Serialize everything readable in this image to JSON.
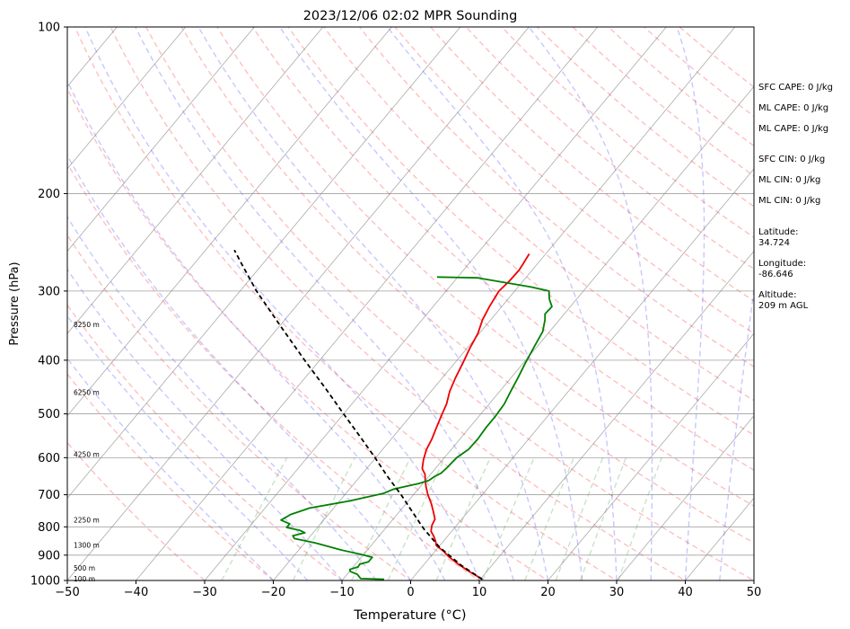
{
  "chart_data": {
    "type": "line",
    "title": "2023/12/06 02:02 MPR Sounding",
    "xlabel": "Temperature (°C)",
    "ylabel": "Pressure (hPa)",
    "xlim": [
      -50,
      50
    ],
    "ylim": [
      1000,
      100
    ],
    "y_scale": "log",
    "skew": "skew-T",
    "x_ticks": [
      "−50",
      "−40",
      "−30",
      "−20",
      "−10",
      "0",
      "10",
      "20",
      "30",
      "40",
      "50"
    ],
    "x_tick_values": [
      -50,
      -40,
      -30,
      -20,
      -10,
      0,
      10,
      20,
      30,
      40,
      50
    ],
    "y_ticks": [
      "100",
      "200",
      "300",
      "400",
      "500",
      "600",
      "700",
      "800",
      "900",
      "1000"
    ],
    "y_tick_values": [
      100,
      200,
      300,
      400,
      500,
      600,
      700,
      800,
      900,
      1000
    ],
    "grid": true,
    "height_labels": [
      {
        "text": "8250 m",
        "p": 345
      },
      {
        "text": "6250 m",
        "p": 458
      },
      {
        "text": "4250 m",
        "p": 593
      },
      {
        "text": "2250 m",
        "p": 778
      },
      {
        "text": "1300 m",
        "p": 865
      },
      {
        "text": "500 m",
        "p": 951
      },
      {
        "text": "100 m",
        "p": 994
      }
    ],
    "series": [
      {
        "color": "#ee0000",
        "style": "solid",
        "points": [
          {
            "p": 995,
            "t": 10.3
          },
          {
            "p": 965,
            "t": 7.6
          },
          {
            "p": 935,
            "t": 5.0
          },
          {
            "p": 905,
            "t": 2.6
          },
          {
            "p": 885,
            "t": 1.2
          },
          {
            "p": 865,
            "t": -0.5
          },
          {
            "p": 850,
            "t": -1.1
          },
          {
            "p": 832,
            "t": -2.0
          },
          {
            "p": 815,
            "t": -3.0
          },
          {
            "p": 795,
            "t": -3.6
          },
          {
            "p": 775,
            "t": -3.9
          },
          {
            "p": 752,
            "t": -5.0
          },
          {
            "p": 725,
            "t": -6.4
          },
          {
            "p": 700,
            "t": -7.9
          },
          {
            "p": 678,
            "t": -9.1
          },
          {
            "p": 660,
            "t": -10.0
          },
          {
            "p": 643,
            "t": -10.8
          },
          {
            "p": 628,
            "t": -11.9
          },
          {
            "p": 605,
            "t": -12.8
          },
          {
            "p": 580,
            "t": -13.6
          },
          {
            "p": 555,
            "t": -14.1
          },
          {
            "p": 530,
            "t": -14.8
          },
          {
            "p": 505,
            "t": -15.5
          },
          {
            "p": 480,
            "t": -16.2
          },
          {
            "p": 455,
            "t": -17.3
          },
          {
            "p": 430,
            "t": -18.1
          },
          {
            "p": 405,
            "t": -18.8
          },
          {
            "p": 380,
            "t": -19.6
          },
          {
            "p": 358,
            "t": -20.2
          },
          {
            "p": 338,
            "t": -21.2
          },
          {
            "p": 320,
            "t": -21.8
          },
          {
            "p": 300,
            "t": -22.3
          },
          {
            "p": 288,
            "t": -22.0
          },
          {
            "p": 275,
            "t": -21.9
          },
          {
            "p": 267,
            "t": -22.1
          },
          {
            "p": 257,
            "t": -22.4
          }
        ]
      },
      {
        "color": "#008000",
        "style": "solid",
        "points": [
          {
            "p": 995,
            "t": -4.0
          },
          {
            "p": 992,
            "t": -7.5
          },
          {
            "p": 975,
            "t": -8.5
          },
          {
            "p": 963,
            "t": -9.9
          },
          {
            "p": 955,
            "t": -10.2
          },
          {
            "p": 945,
            "t": -9.3
          },
          {
            "p": 935,
            "t": -9.4
          },
          {
            "p": 925,
            "t": -8.4
          },
          {
            "p": 908,
            "t": -8.4
          },
          {
            "p": 898,
            "t": -10.2
          },
          {
            "p": 880,
            "t": -14.0
          },
          {
            "p": 855,
            "t": -18.5
          },
          {
            "p": 840,
            "t": -22.0
          },
          {
            "p": 830,
            "t": -22.6
          },
          {
            "p": 820,
            "t": -21.2
          },
          {
            "p": 812,
            "t": -22.2
          },
          {
            "p": 802,
            "t": -24.5
          },
          {
            "p": 790,
            "t": -24.5
          },
          {
            "p": 778,
            "t": -26.2
          },
          {
            "p": 760,
            "t": -25.5
          },
          {
            "p": 740,
            "t": -23.5
          },
          {
            "p": 718,
            "t": -18.5
          },
          {
            "p": 696,
            "t": -14.5
          },
          {
            "p": 684,
            "t": -13.6
          },
          {
            "p": 668,
            "t": -10.6
          },
          {
            "p": 660,
            "t": -9.5
          },
          {
            "p": 648,
            "t": -9.1
          },
          {
            "p": 640,
            "t": -8.6
          },
          {
            "p": 625,
            "t": -8.4
          },
          {
            "p": 600,
            "t": -8.2
          },
          {
            "p": 580,
            "t": -7.5
          },
          {
            "p": 555,
            "t": -7.4
          },
          {
            "p": 530,
            "t": -7.6
          },
          {
            "p": 505,
            "t": -7.6
          },
          {
            "p": 480,
            "t": -7.8
          },
          {
            "p": 455,
            "t": -8.4
          },
          {
            "p": 430,
            "t": -9.0
          },
          {
            "p": 405,
            "t": -9.7
          },
          {
            "p": 378,
            "t": -10.4
          },
          {
            "p": 355,
            "t": -11.0
          },
          {
            "p": 338,
            "t": -12.1
          },
          {
            "p": 330,
            "t": -12.8
          },
          {
            "p": 320,
            "t": -12.7
          },
          {
            "p": 310,
            "t": -14.0
          },
          {
            "p": 300,
            "t": -15.0
          },
          {
            "p": 295,
            "t": -18.1
          },
          {
            "p": 284,
            "t": -27.0
          },
          {
            "p": 283,
            "t": -33.0
          }
        ]
      },
      {
        "color": "#000000",
        "style": "dashed",
        "points": [
          {
            "p": 995,
            "t": 10.3
          },
          {
            "p": 940,
            "t": 5.6
          },
          {
            "p": 870,
            "t": 0.1
          },
          {
            "p": 806,
            "t": -4.4
          },
          {
            "p": 750,
            "t": -8.2
          },
          {
            "p": 700,
            "t": -11.8
          },
          {
            "p": 650,
            "t": -15.9
          },
          {
            "p": 600,
            "t": -20.1
          },
          {
            "p": 550,
            "t": -24.8
          },
          {
            "p": 500,
            "t": -30.0
          },
          {
            "p": 450,
            "t": -35.7
          },
          {
            "p": 400,
            "t": -42.2
          },
          {
            "p": 350,
            "t": -49.4
          },
          {
            "p": 300,
            "t": -57.6
          },
          {
            "p": 270,
            "t": -62.7
          },
          {
            "p": 253,
            "t": -65.8
          }
        ]
      }
    ],
    "background_lines": {
      "dry_adiabat_color": "#ff0000",
      "moist_adiabat_color": "#0000ff",
      "mixing_ratio_color": "#008000",
      "isotherm_color": "#555555"
    }
  },
  "side_panel": [
    {
      "text": "SFC CAPE: 0 J/kg"
    },
    {
      "text": "ML CAPE: 0 J/kg"
    },
    {
      "text": "ML CAPE: 0 J/kg"
    },
    {
      "text": "SFC CIN: 0 J/kg"
    },
    {
      "text": "ML CIN: 0 J/kg"
    },
    {
      "text": "ML CIN: 0 J/kg"
    },
    {
      "text": "Latitude:",
      "value": "34.724"
    },
    {
      "text": "Longitude:",
      "value": "-86.646"
    },
    {
      "text": "Altitude:",
      "value": "209 m AGL"
    }
  ]
}
